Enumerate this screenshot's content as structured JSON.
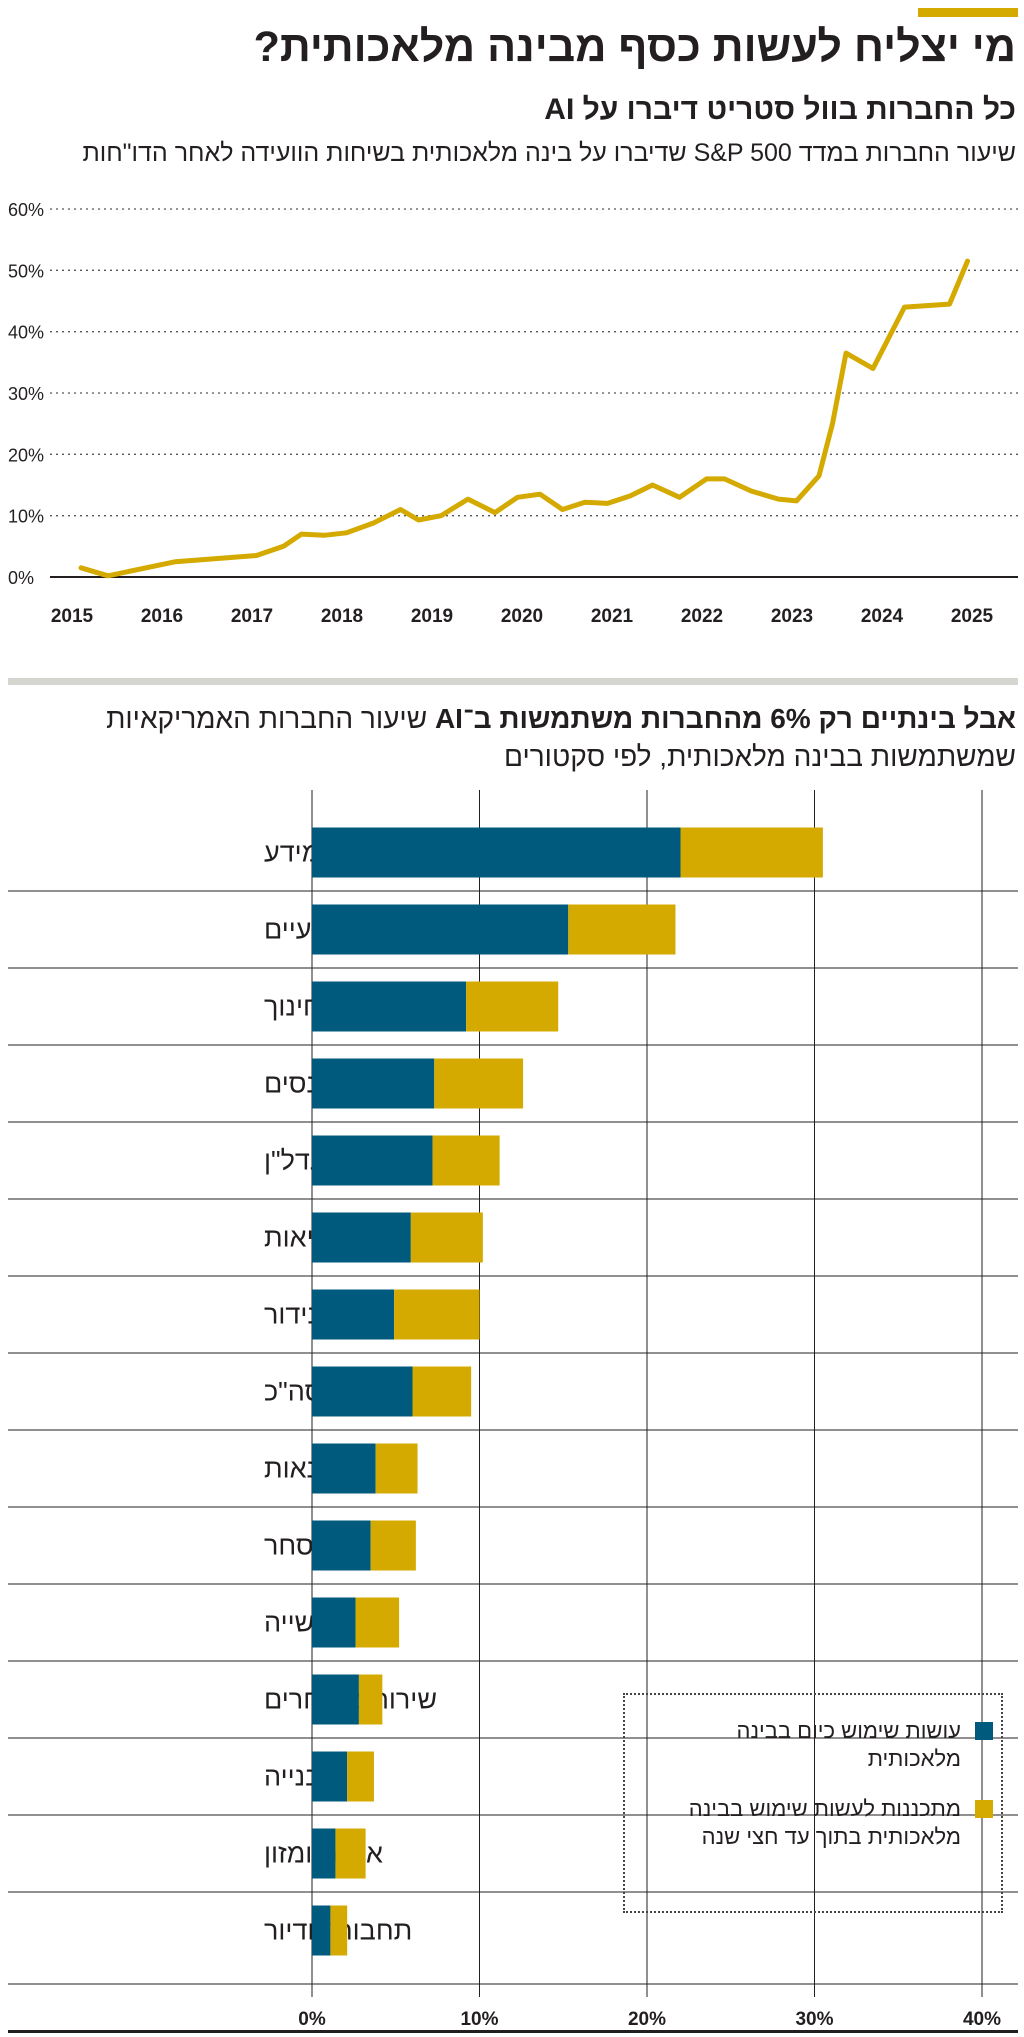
{
  "header": {
    "title": "מי יצליח לעשות כסף מבינה מלאכותית?",
    "subtitle": "כל החברות בוול סטריט דיברו על AI",
    "description": "שיעור החברות במדד S&P 500 שדיברו על בינה מלאכותית בשיחות הוועידה לאחר הדו\"חות"
  },
  "colors": {
    "accent": "#d4aa00",
    "line": "#d4aa00",
    "current_use": "#005a7d",
    "planned_use": "#d4aa00",
    "grid": "#555555"
  },
  "section2": {
    "title_bold": "אבל בינתיים רק 6% מהחברות משתמשות ב־AI",
    "title_rest": "שיעור החברות האמריקאיות שמשתמשות בבינה מלאכותית, לפי סקטורים"
  },
  "chart_data": [
    {
      "type": "line",
      "title": "כל החברות בוול סטריט דיברו על AI",
      "ylabel": "שיעור החברות במדד S&P 500 שדיברו על בינה מלאכותית",
      "ylim": [
        0,
        60
      ],
      "y_ticks": [
        "0%",
        "10%",
        "20%",
        "30%",
        "40%",
        "50%",
        "60%"
      ],
      "x_ticks": [
        "2015",
        "2016",
        "2017",
        "2018",
        "2019",
        "2020",
        "2021",
        "2022",
        "2023",
        "2024",
        "2025"
      ],
      "xlim": [
        2015,
        2025.5
      ],
      "grid": "horizontal dotted",
      "x": [
        2015.1,
        2015.4,
        2016.15,
        2017.05,
        2017.35,
        2017.55,
        2017.8,
        2018.05,
        2018.35,
        2018.65,
        2018.85,
        2019.1,
        2019.4,
        2019.7,
        2019.95,
        2020.2,
        2020.45,
        2020.7,
        2020.95,
        2021.2,
        2021.45,
        2021.75,
        2022.05,
        2022.25,
        2022.55,
        2022.85,
        2023.05,
        2023.3,
        2023.45,
        2023.6,
        2023.9,
        2024.25,
        2024.75,
        2024.95
      ],
      "y": [
        1.5,
        0.2,
        2.5,
        3.5,
        5.0,
        7.0,
        6.8,
        7.2,
        8.8,
        11.0,
        9.3,
        10.0,
        12.7,
        10.5,
        13.0,
        13.5,
        11.0,
        12.2,
        12.0,
        13.2,
        15.0,
        13.0,
        16.0,
        16.0,
        14.0,
        12.7,
        12.4,
        16.5,
        25.0,
        36.5,
        34.0,
        44.0,
        44.5,
        51.5
      ]
    },
    {
      "type": "bar",
      "orientation": "horizontal",
      "stacked": true,
      "title": "אבל בינתיים רק 6% מהחברות משתמשות ב־AI",
      "subtitle": "שיעור החברות האמריקאיות שמשתמשות בבינה מלאכותית, לפי סקטורים",
      "xlim": [
        0,
        40
      ],
      "x_ticks": [
        "0%",
        "10%",
        "20%",
        "30%",
        "40%"
      ],
      "categories": [
        "מידע",
        "שירותים מקצועיים",
        "חינוך",
        "פיננסים",
        "נדל\"ן",
        "בריאות",
        "בידור",
        "סה\"כ",
        "סיטונאות",
        "מסחר",
        "תעשייה",
        "שירותים אחרים",
        "בנייה",
        "אירוח ומזון",
        "תחבורה ודיור"
      ],
      "series": [
        {
          "name": "עושות שימוש כיום בבינה מלאכותית",
          "values": [
            22.0,
            15.3,
            9.2,
            7.3,
            7.2,
            5.9,
            4.9,
            6.0,
            3.8,
            3.5,
            2.6,
            2.8,
            2.1,
            1.4,
            1.1
          ]
        },
        {
          "name": "מתכננות לעשות שימוש בבינה מלאכותית בתוך עד חצי שנה",
          "values": [
            8.5,
            6.4,
            5.5,
            5.3,
            4.0,
            4.3,
            5.1,
            3.5,
            2.5,
            2.7,
            2.6,
            1.4,
            1.6,
            1.8,
            1.0
          ]
        }
      ],
      "legend_position": "bottom-right"
    }
  ]
}
